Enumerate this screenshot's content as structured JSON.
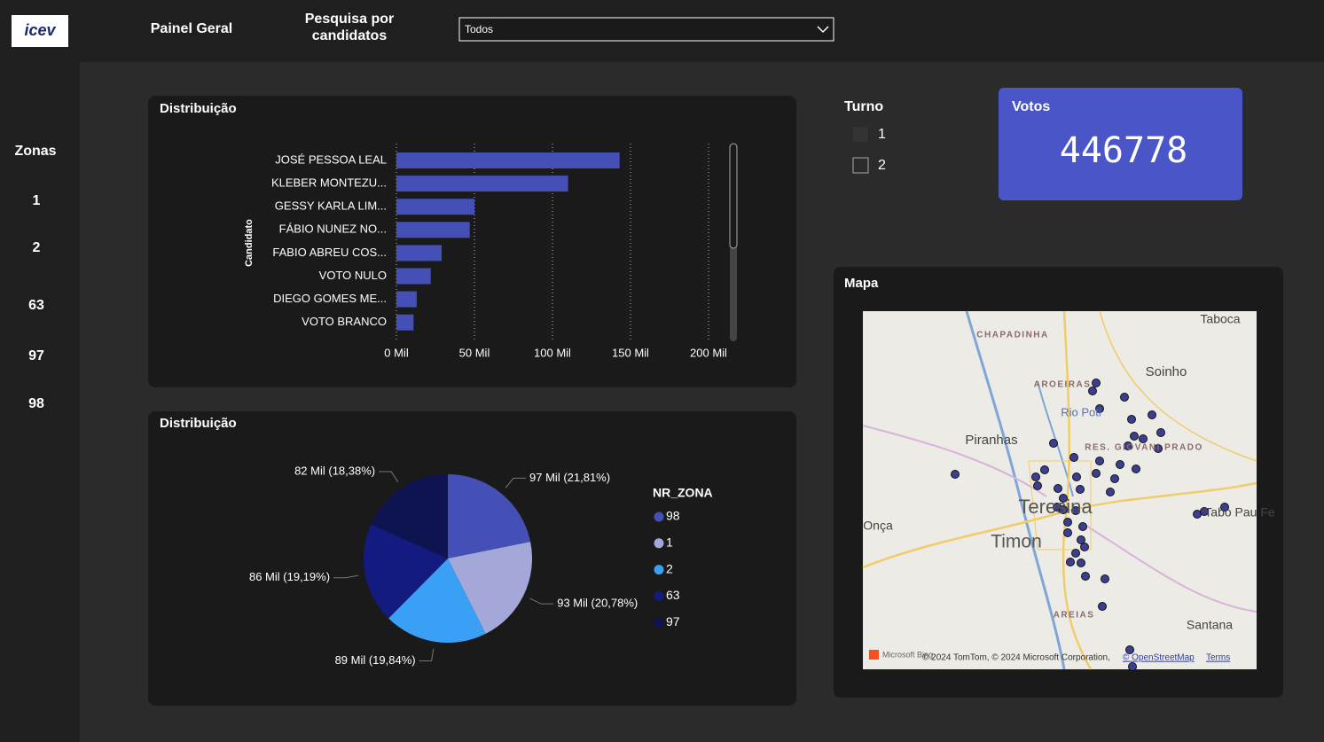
{
  "header": {
    "logo": "icev",
    "nav": "Painel Geral",
    "search_label": "Pesquisa por candidatos",
    "dropdown": "Todos"
  },
  "sidebar": {
    "title": "Zonas",
    "items": [
      "1",
      "2",
      "63",
      "97",
      "98"
    ]
  },
  "chart_data": [
    {
      "type": "bar",
      "orientation": "horizontal",
      "title": "Distribuição",
      "y_label": "Candidato",
      "categories": [
        "JOSÉ PESSOA LEAL",
        "KLEBER MONTEZU...",
        "GESSY KARLA LIM...",
        "FÁBIO NUNEZ NO...",
        "FABIO ABREU COS...",
        "VOTO NULO",
        "DIEGO GOMES ME...",
        "VOTO BRANCO"
      ],
      "values": [
        143000,
        110000,
        50000,
        47000,
        29000,
        22000,
        13000,
        11000
      ],
      "color": "#4450b5",
      "grid": true,
      "xlim": [
        0,
        210000
      ],
      "xticks": [
        {
          "value": 0,
          "label": "0 Mil"
        },
        {
          "value": 50000,
          "label": "50 Mil"
        },
        {
          "value": 100000,
          "label": "100 Mil"
        },
        {
          "value": 150000,
          "label": "150 Mil"
        },
        {
          "value": 200000,
          "label": "200 Mil"
        }
      ]
    },
    {
      "type": "pie",
      "title": "Distribuição",
      "legend_title": "NR_ZONA",
      "categories": [
        "98",
        "1",
        "2",
        "63",
        "97"
      ],
      "values": [
        21.81,
        20.78,
        19.84,
        19.19,
        18.38
      ],
      "value_labels": [
        "97 Mil (21,81%)",
        "93 Mil (20,78%)",
        "89 Mil (19,84%)",
        "86 Mil (19,19%)",
        "82 Mil (18,38%)"
      ],
      "colors": [
        "#4450b5",
        "#a3a8d9",
        "#3aa0f5",
        "#131a80",
        "#0d1450"
      ]
    }
  ],
  "turno": {
    "title": "Turno",
    "options": [
      "1",
      "2"
    ]
  },
  "card": {
    "title": "Votos",
    "value": 446778
  },
  "map": {
    "title": "Mapa",
    "places": [
      "Taboca",
      "CHAPADINHA",
      "Soinho",
      "AROEIRAS",
      "Rio Poti",
      "Piranhas",
      "RES. GIOVANI PRADO",
      "Teresina",
      "Timon",
      "Onça",
      "Tabo Pau Fe",
      "AREIAS",
      "Santana"
    ],
    "brand": "Microsoft Bing",
    "attribution": "© 2024 TomTom, © 2024 Microsoft Corporation,",
    "osm": "© OpenStreetMap",
    "terms": "Terms"
  }
}
